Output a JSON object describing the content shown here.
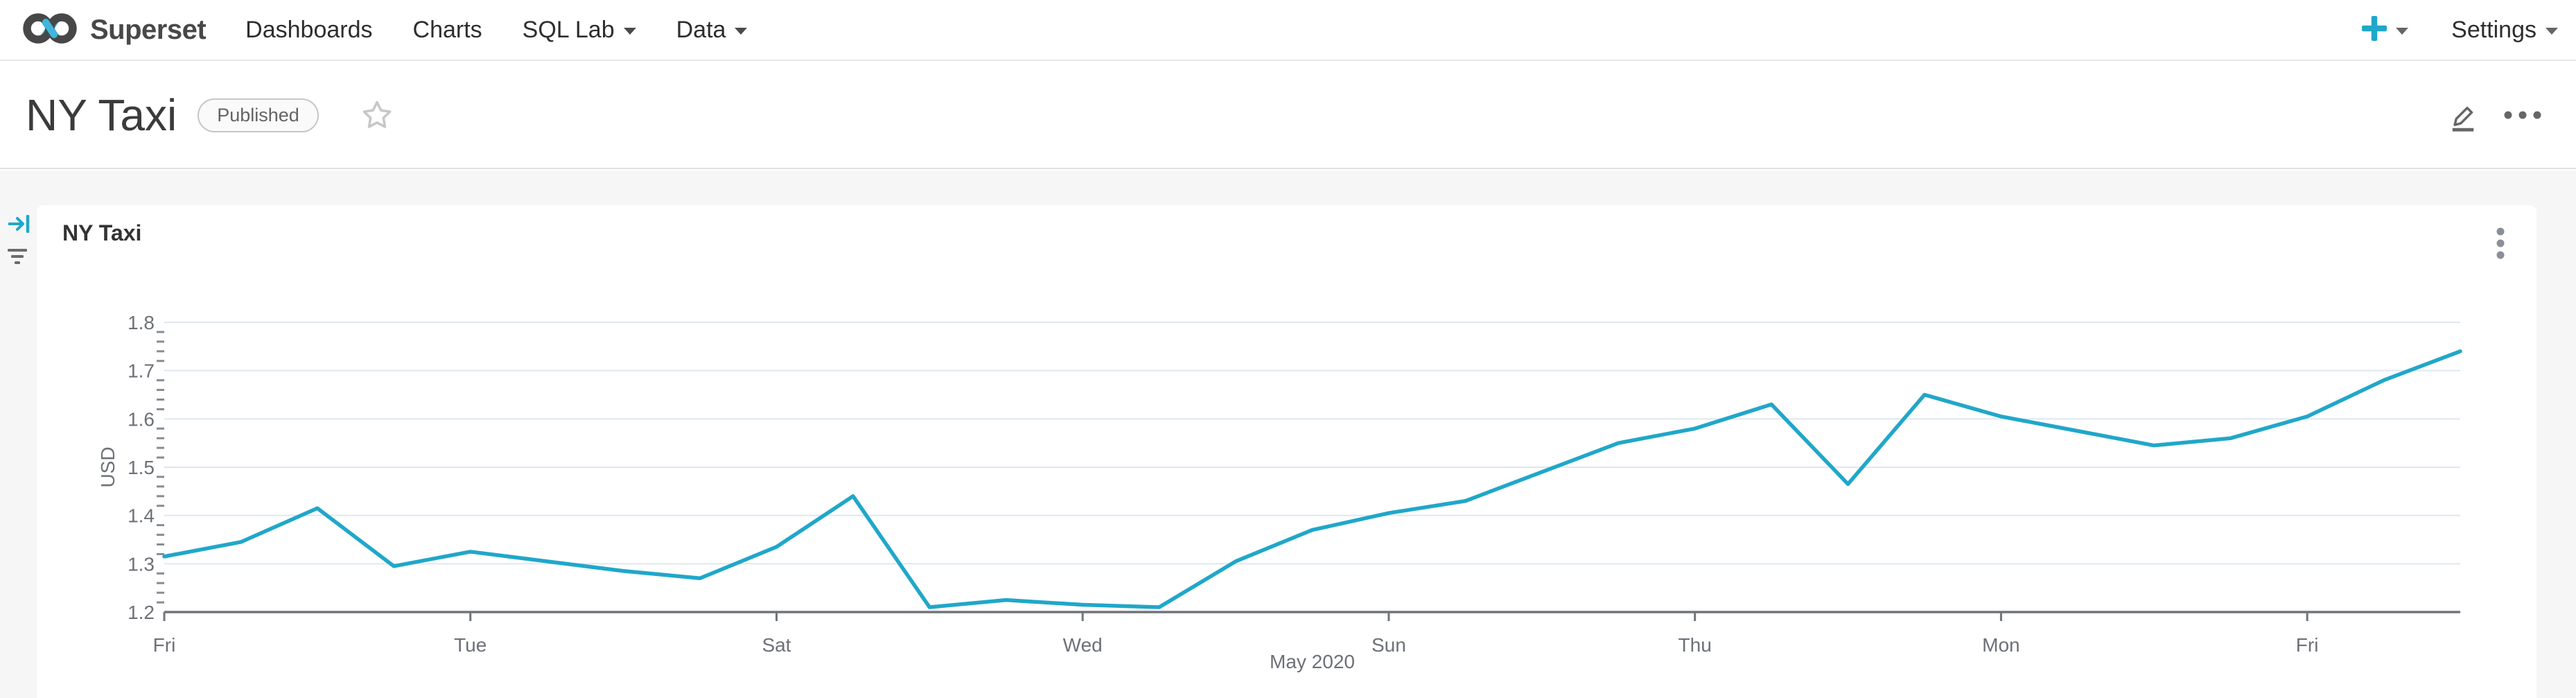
{
  "navbar": {
    "brand": "Superset",
    "items": [
      {
        "label": "Dashboards",
        "has_caret": false
      },
      {
        "label": "Charts",
        "has_caret": false
      },
      {
        "label": "SQL Lab",
        "has_caret": true
      },
      {
        "label": "Data",
        "has_caret": true
      }
    ],
    "settings_label": "Settings"
  },
  "titlebar": {
    "title": "NY Taxi",
    "badge": "Published"
  },
  "chart_card": {
    "title": "NY Taxi"
  },
  "icons": {
    "navbar": [
      "superset-logo",
      "plus-icon",
      "caret-down-icon"
    ],
    "titlebar": [
      "star-icon",
      "edit-icon",
      "more-horizontal-icon"
    ],
    "content": [
      "collapse-right-icon",
      "filter-icon",
      "more-vertical-icon"
    ]
  },
  "colors": {
    "accent": "#20A7C9",
    "line": "#20A7C9",
    "axis": "#71757A",
    "label": "#6E7079",
    "grid": "#E0E6F1",
    "content_background": "#F6F6F6"
  },
  "chart_data": {
    "type": "line",
    "title": "NY Taxi",
    "xlabel": "May 2020",
    "ylabel": "USD",
    "ylim": [
      1.2,
      1.8
    ],
    "y_tick_labels": [
      "1.2",
      "1.3",
      "1.4",
      "1.5",
      "1.6",
      "1.7",
      "1.8"
    ],
    "y_minor_tick_step": 0.02,
    "grid": "horizontal-only",
    "legend": "none",
    "line_color": "#20A7C9",
    "x_ticks": [
      {
        "index": 0,
        "label": "Fri"
      },
      {
        "index": 4,
        "label": "Tue"
      },
      {
        "index": 8,
        "label": "Sat"
      },
      {
        "index": 12,
        "label": "Wed"
      },
      {
        "index": 16,
        "label": "Sun"
      },
      {
        "index": 20,
        "label": "Thu"
      },
      {
        "index": 24,
        "label": "Mon"
      },
      {
        "index": 28,
        "label": "Fri"
      }
    ],
    "values": [
      1.315,
      1.345,
      1.415,
      1.295,
      1.325,
      1.305,
      1.285,
      1.27,
      1.335,
      1.44,
      1.21,
      1.225,
      1.215,
      1.21,
      1.305,
      1.37,
      1.405,
      1.43,
      1.49,
      1.55,
      1.58,
      1.63,
      1.465,
      1.65,
      1.605,
      1.575,
      1.545,
      1.56,
      1.605,
      1.68,
      1.74
    ]
  }
}
